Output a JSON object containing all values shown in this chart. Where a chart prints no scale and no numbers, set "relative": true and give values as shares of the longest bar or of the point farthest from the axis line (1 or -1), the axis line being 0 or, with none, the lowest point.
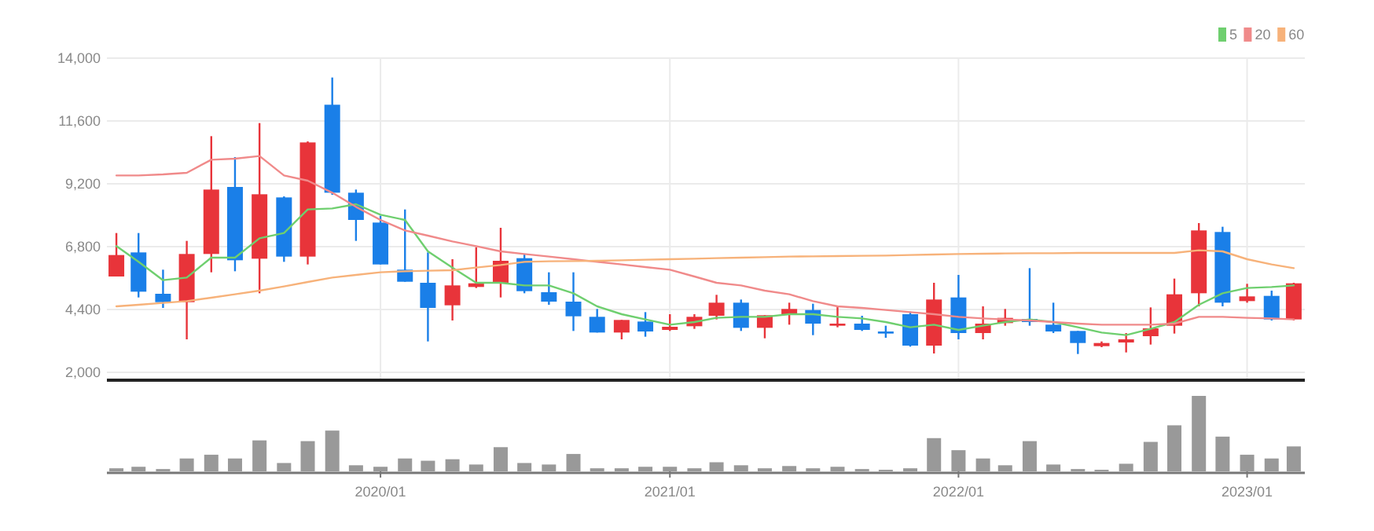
{
  "chart_data": [
    {
      "type": "candlestick",
      "x": [
        "2019-02",
        "2019-03",
        "2019-04",
        "2019-05",
        "2019-06",
        "2019-07",
        "2019-08",
        "2019-09",
        "2019-10",
        "2019-11",
        "2019-12",
        "2020-01",
        "2020-02",
        "2020-03",
        "2020-04",
        "2020-05",
        "2020-06",
        "2020-07",
        "2020-08",
        "2020-09",
        "2020-10",
        "2020-11",
        "2020-12",
        "2021-01",
        "2021-02",
        "2021-03",
        "2021-04",
        "2021-05",
        "2021-06",
        "2021-07",
        "2021-08",
        "2021-09",
        "2021-10",
        "2021-11",
        "2021-12",
        "2022-01",
        "2022-02",
        "2022-03",
        "2022-04",
        "2022-05",
        "2022-06",
        "2022-07",
        "2022-08",
        "2022-09",
        "2022-10",
        "2022-11",
        "2022-12",
        "2023-01",
        "2023-02",
        "2023-03"
      ],
      "ohlc": [
        [
          5660,
          7320,
          5660,
          6480
        ],
        [
          6580,
          7320,
          4860,
          5080
        ],
        [
          5000,
          5920,
          4460,
          4680
        ],
        [
          4680,
          7020,
          3260,
          6520
        ],
        [
          6520,
          11020,
          5820,
          8980
        ],
        [
          9080,
          10220,
          5860,
          6280
        ],
        [
          6340,
          11520,
          5020,
          8800
        ],
        [
          8680,
          8720,
          6220,
          6420
        ],
        [
          6420,
          10820,
          6120,
          10780
        ],
        [
          12220,
          13260,
          8780,
          8860
        ],
        [
          8860,
          8980,
          7020,
          7820
        ],
        [
          7720,
          7980,
          6120,
          6120
        ],
        [
          5920,
          8220,
          5460,
          5460
        ],
        [
          5420,
          6580,
          3180,
          4460
        ],
        [
          4560,
          6320,
          3980,
          5320
        ],
        [
          5260,
          6780,
          5220,
          5400
        ],
        [
          5400,
          7520,
          4860,
          6260
        ],
        [
          6360,
          6520,
          5020,
          5100
        ],
        [
          5060,
          5820,
          4580,
          4700
        ],
        [
          4700,
          5820,
          3580,
          4140
        ],
        [
          4120,
          4420,
          3520,
          3520
        ],
        [
          3520,
          4000,
          3260,
          4000
        ],
        [
          3940,
          4300,
          3360,
          3560
        ],
        [
          3620,
          4220,
          3580,
          3740
        ],
        [
          3760,
          4220,
          3660,
          4120
        ],
        [
          4160,
          4960,
          4020,
          4660
        ],
        [
          4660,
          4780,
          3580,
          3700
        ],
        [
          3700,
          4180,
          3300,
          4180
        ],
        [
          4220,
          4660,
          3820,
          4420
        ],
        [
          4380,
          4620,
          3420,
          3860
        ],
        [
          3780,
          4520,
          3720,
          3860
        ],
        [
          3860,
          4160,
          3580,
          3620
        ],
        [
          3560,
          3780,
          3320,
          3480
        ],
        [
          4220,
          4320,
          2980,
          3020
        ],
        [
          3020,
          5420,
          2720,
          4780
        ],
        [
          4860,
          5720,
          3260,
          3500
        ],
        [
          3500,
          4520,
          3260,
          3860
        ],
        [
          3880,
          4420,
          3780,
          4080
        ],
        [
          4040,
          5980,
          3780,
          3920
        ],
        [
          3820,
          4660,
          3500,
          3560
        ],
        [
          3580,
          3580,
          2700,
          3120
        ],
        [
          3000,
          3180,
          2960,
          3120
        ],
        [
          3140,
          3500,
          2760,
          3260
        ],
        [
          3380,
          4480,
          3060,
          3680
        ],
        [
          3780,
          5580,
          3480,
          4980
        ],
        [
          5020,
          7700,
          4520,
          7420
        ],
        [
          7360,
          7560,
          4520,
          4660
        ],
        [
          4720,
          5380,
          4660,
          4900
        ],
        [
          4920,
          5120,
          3980,
          4020
        ],
        [
          4020,
          5420,
          3980,
          5400
        ]
      ],
      "colors": [
        "#e8343a",
        "#1a7fe8",
        "#1a7fe8",
        "#e8343a",
        "#e8343a",
        "#1a7fe8",
        "#e8343a",
        "#1a7fe8",
        "#e8343a",
        "#1a7fe8",
        "#1a7fe8",
        "#1a7fe8",
        "#1a7fe8",
        "#1a7fe8",
        "#e8343a",
        "#e8343a",
        "#e8343a",
        "#1a7fe8",
        "#1a7fe8",
        "#1a7fe8",
        "#1a7fe8",
        "#e8343a",
        "#1a7fe8",
        "#e8343a",
        "#e8343a",
        "#e8343a",
        "#1a7fe8",
        "#e8343a",
        "#e8343a",
        "#1a7fe8",
        "#e8343a",
        "#1a7fe8",
        "#1a7fe8",
        "#1a7fe8",
        "#e8343a",
        "#1a7fe8",
        "#e8343a",
        "#e8343a",
        "#1a7fe8",
        "#1a7fe8",
        "#1a7fe8",
        "#e8343a",
        "#e8343a",
        "#e8343a",
        "#e8343a",
        "#e8343a",
        "#1a7fe8",
        "#e8343a",
        "#1a7fe8",
        "#e8343a"
      ],
      "series": [
        {
          "type": "line",
          "name": "5",
          "color": "#6fcf6f",
          "values": [
            6820,
            6220,
            5520,
            5620,
            6380,
            6380,
            7120,
            7320,
            8220,
            8260,
            8420,
            8020,
            7820,
            6620,
            6000,
            5420,
            5420,
            5320,
            5320,
            5020,
            4520,
            4220,
            4020,
            3820,
            3920,
            4080,
            4120,
            4120,
            4220,
            4220,
            4120,
            4060,
            3920,
            3720,
            3820,
            3620,
            3780,
            3920,
            4020,
            3920,
            3720,
            3520,
            3420,
            3660,
            3920,
            4580,
            5020,
            5220,
            5260,
            5320
          ]
        },
        {
          "type": "line",
          "name": "20",
          "color": "#f08a8a",
          "values": [
            9520,
            9520,
            9560,
            9620,
            10120,
            10160,
            10260,
            9520,
            9320,
            8860,
            8320,
            7820,
            7420,
            7220,
            7000,
            6820,
            6620,
            6520,
            6420,
            6320,
            6220,
            6120,
            6020,
            5920,
            5660,
            5420,
            5320,
            5120,
            4980,
            4720,
            4520,
            4460,
            4380,
            4300,
            4220,
            4120,
            4060,
            4020,
            3980,
            3920,
            3860,
            3820,
            3820,
            3820,
            3860,
            4120,
            4120,
            4080,
            4060,
            4020
          ]
        },
        {
          "type": "line",
          "name": "60",
          "color": "#f7b27a",
          "values": [
            4520,
            4580,
            4650,
            4720,
            4850,
            4980,
            5120,
            5280,
            5450,
            5620,
            5720,
            5820,
            5860,
            5880,
            5900,
            6000,
            6100,
            6220,
            6240,
            6250,
            6260,
            6280,
            6300,
            6320,
            6340,
            6360,
            6380,
            6400,
            6420,
            6430,
            6440,
            6450,
            6460,
            6480,
            6500,
            6520,
            6530,
            6540,
            6550,
            6550,
            6560,
            6560,
            6560,
            6560,
            6560,
            6660,
            6620,
            6320,
            6120,
            5980
          ]
        }
      ],
      "xlim": [
        "2019-01-20",
        "2023-03-15"
      ],
      "ylim": [
        1700,
        14000
      ],
      "yticks": [
        {
          "value": 2000,
          "label": "2,000"
        },
        {
          "value": 4400,
          "label": "4,400"
        },
        {
          "value": 6800,
          "label": "6,800"
        },
        {
          "value": 9200,
          "label": "9,200"
        },
        {
          "value": 11600,
          "label": "11,600"
        },
        {
          "value": 14000,
          "label": "14,000"
        }
      ],
      "xticks": [
        {
          "value": "2020-01",
          "label": null
        },
        {
          "value": "2021-01",
          "label": null
        },
        {
          "value": "2022-01",
          "label": null
        },
        {
          "value": "2023-01",
          "label": null
        }
      ],
      "grid": true,
      "legend": "top right",
      "tick_labels": "y"
    },
    {
      "type": "bar",
      "relative": true,
      "color": "#999999",
      "x": [
        "2019-02",
        "2019-03",
        "2019-04",
        "2019-05",
        "2019-06",
        "2019-07",
        "2019-08",
        "2019-09",
        "2019-10",
        "2019-11",
        "2019-12",
        "2020-01",
        "2020-02",
        "2020-03",
        "2020-04",
        "2020-05",
        "2020-06",
        "2020-07",
        "2020-08",
        "2020-09",
        "2020-10",
        "2020-11",
        "2020-12",
        "2021-01",
        "2021-02",
        "2021-03",
        "2021-04",
        "2021-05",
        "2021-06",
        "2021-07",
        "2021-08",
        "2021-09",
        "2021-10",
        "2021-11",
        "2021-12",
        "2022-01",
        "2022-02",
        "2022-03",
        "2022-04",
        "2022-05",
        "2022-06",
        "2022-07",
        "2022-08",
        "2022-09",
        "2022-10",
        "2022-11",
        "2022-12",
        "2023-01",
        "2023-02",
        "2023-03"
      ],
      "values": [
        0.04,
        0.06,
        0.03,
        0.17,
        0.22,
        0.17,
        0.41,
        0.11,
        0.4,
        0.54,
        0.08,
        0.06,
        0.17,
        0.14,
        0.16,
        0.09,
        0.32,
        0.11,
        0.09,
        0.23,
        0.04,
        0.04,
        0.06,
        0.06,
        0.04,
        0.12,
        0.08,
        0.04,
        0.07,
        0.04,
        0.06,
        0.03,
        0.02,
        0.04,
        0.44,
        0.28,
        0.17,
        0.08,
        0.4,
        0.09,
        0.03,
        0.02,
        0.1,
        0.39,
        0.61,
        1,
        0.46,
        0.22,
        0.17,
        0.33
      ],
      "xlim": [
        "2019-01-20",
        "2023-03-15"
      ],
      "xticks": [
        {
          "value": "2020-01",
          "label": "2020/01"
        },
        {
          "value": "2021-01",
          "label": "2021/01"
        },
        {
          "value": "2022-01",
          "label": "2022/01"
        },
        {
          "value": "2023-01",
          "label": "2023/01"
        }
      ],
      "tick_labels": "x"
    }
  ]
}
